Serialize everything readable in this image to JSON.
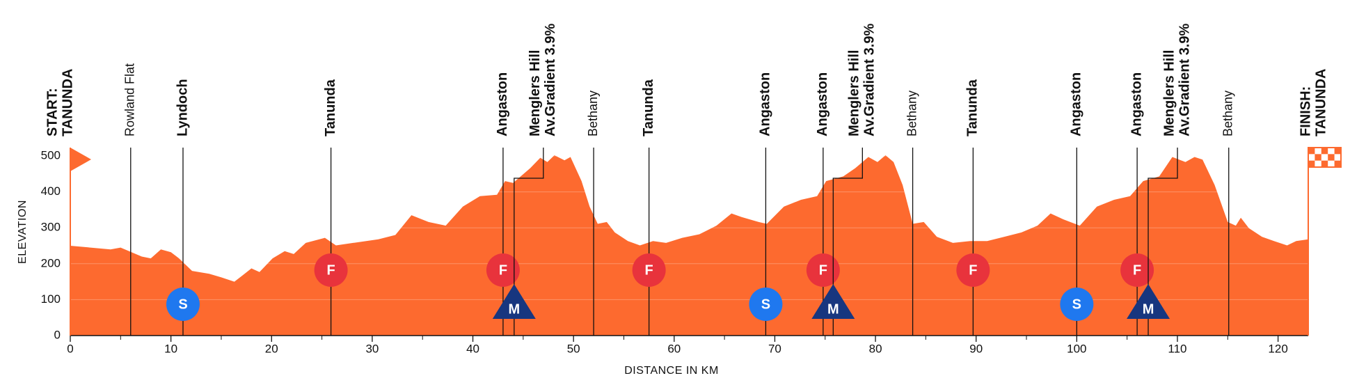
{
  "chart_data": {
    "type": "area",
    "color": "#fd6a2f",
    "xlabel": "DISTANCE IN KM",
    "ylabel": "ELEVATION",
    "xlim": [
      0,
      123
    ],
    "ylim": [
      0,
      500
    ],
    "xticks": [
      0,
      10,
      20,
      30,
      40,
      50,
      60,
      70,
      80,
      90,
      100,
      110,
      120
    ],
    "xminorticks": [
      5,
      15,
      25,
      35,
      45,
      55,
      65,
      75,
      85,
      95,
      105,
      115
    ],
    "yticks": [
      0,
      100,
      200,
      300,
      400,
      500
    ],
    "grid": true,
    "x": [
      0,
      2,
      4,
      5,
      7.1,
      8,
      9,
      10,
      10.8,
      12.1,
      13.8,
      15,
      16.3,
      17.1,
      18,
      18.8,
      20.1,
      21.3,
      22.2,
      23.4,
      25.3,
      26.4,
      28.1,
      30.6,
      32.3,
      33.9,
      35.6,
      37.3,
      39,
      40.7,
      42.4,
      43.2,
      44,
      45.7,
      46.7,
      47.4,
      48.1,
      49.1,
      49.7,
      50.8,
      51.6,
      52.4,
      53.3,
      54.1,
      55.4,
      56.6,
      57.9,
      59.2,
      60.8,
      62.5,
      64.2,
      65.7,
      66.7,
      68.4,
      69.2,
      70.9,
      72.6,
      74.2,
      75.1,
      76.8,
      78,
      79.3,
      80.2,
      81,
      81.8,
      82.7,
      83.7,
      84.8,
      86.1,
      87.7,
      89.4,
      91.1,
      92.8,
      94.5,
      96.1,
      97.4,
      98.7,
      100.3,
      102,
      103.7,
      105.3,
      106.6,
      108.2,
      109.5,
      110.8,
      111.7,
      112.5,
      113.7,
      115,
      115.8,
      116.3,
      117.1,
      118.4,
      119.6,
      120.9,
      121.8,
      123
    ],
    "values": [
      250,
      245,
      240,
      245,
      220,
      215,
      240,
      232,
      215,
      180,
      172,
      162,
      150,
      167,
      187,
      177,
      215,
      235,
      227,
      258,
      272,
      251,
      258,
      268,
      280,
      335,
      316,
      306,
      359,
      388,
      392,
      430,
      425,
      466,
      495,
      483,
      502,
      488,
      497,
      430,
      359,
      311,
      316,
      287,
      263,
      251,
      263,
      258,
      272,
      282,
      306,
      340,
      330,
      316,
      311,
      359,
      378,
      388,
      430,
      443,
      466,
      497,
      483,
      502,
      483,
      419,
      311,
      316,
      275,
      258,
      263,
      263,
      275,
      287,
      306,
      340,
      323,
      306,
      359,
      378,
      388,
      430,
      443,
      497,
      483,
      497,
      490,
      419,
      316,
      306,
      328,
      299,
      275,
      263,
      251,
      263,
      268
    ],
    "waypoints": [
      {
        "label": [
          "START:",
          "TANUNDA"
        ],
        "km": 0,
        "kind": "start"
      },
      {
        "label": [
          "Rowland Flat"
        ],
        "km": 6,
        "kind": "minor"
      },
      {
        "label": [
          "Lyndoch"
        ],
        "km": 11.2,
        "kind": "sprint",
        "icon": "S"
      },
      {
        "label": [
          "Tanunda"
        ],
        "km": 25.9,
        "kind": "feed",
        "icon": "F"
      },
      {
        "label": [
          "Angaston"
        ],
        "km": 43.0,
        "kind": "feed",
        "icon": "F"
      },
      {
        "label": [
          "Menglers Hill",
          "Av.Gradient 3.9%"
        ],
        "km": 44.1,
        "kind": "kom",
        "icon": "M"
      },
      {
        "label": [
          "Bethany"
        ],
        "km": 52.0,
        "kind": "minor"
      },
      {
        "label": [
          "Tanunda"
        ],
        "km": 57.5,
        "kind": "feed",
        "icon": "F"
      },
      {
        "label": [
          "Angaston"
        ],
        "km": 69.1,
        "kind": "sprint",
        "icon": "S"
      },
      {
        "label": [
          "Angaston"
        ],
        "km": 74.8,
        "kind": "feed",
        "icon": "F"
      },
      {
        "label": [
          "Menglers Hill",
          "Av.Gradient 3.9%"
        ],
        "km": 75.8,
        "kind": "kom",
        "icon": "M"
      },
      {
        "label": [
          "Bethany"
        ],
        "km": 83.7,
        "kind": "minor"
      },
      {
        "label": [
          "Tanunda"
        ],
        "km": 89.7,
        "kind": "feed",
        "icon": "F"
      },
      {
        "label": [
          "Angaston"
        ],
        "km": 100.0,
        "kind": "sprint",
        "icon": "S"
      },
      {
        "label": [
          "Angaston"
        ],
        "km": 106.0,
        "kind": "feed",
        "icon": "F"
      },
      {
        "label": [
          "Menglers Hill",
          "Av.Gradient 3.9%"
        ],
        "km": 107.1,
        "kind": "kom",
        "icon": "M"
      },
      {
        "label": [
          "Bethany"
        ],
        "km": 115.1,
        "kind": "minor"
      },
      {
        "label": [
          "FINISH:",
          "TANUNDA"
        ],
        "km": 123,
        "kind": "finish"
      }
    ]
  }
}
